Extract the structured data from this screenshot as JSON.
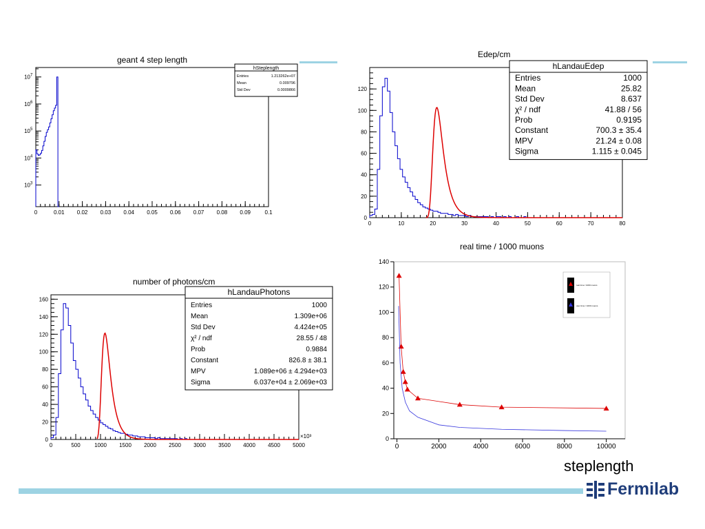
{
  "footer": {
    "label": "steplength",
    "logo_text": "Fermilab"
  },
  "colors": {
    "accent_line": "#9dd3e3",
    "histogram": "#0000cc",
    "fit": "#dd0000",
    "logo": "#1f3d7a"
  },
  "chart_data": [
    {
      "id": "steplength",
      "type": "histogram",
      "title": "geant 4 step length",
      "log_y": true,
      "xlim": [
        0,
        0.1
      ],
      "ylim_exp": [
        2.2,
        7.35
      ],
      "x_ticks": [
        "0",
        "0.01",
        "0.02",
        "0.03",
        "0.04",
        "0.05",
        "0.06",
        "0.07",
        "0.08",
        "0.09",
        "0.1"
      ],
      "y_ticks": [
        {
          "value": 3,
          "base": "10",
          "exp": "3"
        },
        {
          "value": 4,
          "base": "10",
          "exp": "4"
        },
        {
          "value": 5,
          "base": "10",
          "exp": "5"
        },
        {
          "value": 6,
          "base": "10",
          "exp": "6"
        },
        {
          "value": 7,
          "base": "10",
          "exp": "7"
        }
      ],
      "bin_width": 0.0005,
      "log_counts": [
        4.3,
        4.15,
        4.1,
        4.12,
        4.18,
        4.28,
        4.45,
        4.62,
        4.8,
        4.95,
        5.05,
        5.15,
        5.3,
        5.45,
        5.6,
        5.75,
        5.85,
        5.95,
        7.0,
        1.0
      ],
      "stats": {
        "name": "hSteplength",
        "rows": [
          {
            "label": "Entries",
            "value": "1.213262e+07"
          },
          {
            "label": "Mean",
            "value": "0.009796"
          },
          {
            "label": "Std Dev",
            "value": "0.0009866"
          }
        ]
      }
    },
    {
      "id": "edep",
      "type": "histogram",
      "title": "Edep/cm",
      "xlim": [
        0,
        80
      ],
      "ylim": [
        0,
        140
      ],
      "x_ticks": [
        "0",
        "10",
        "20",
        "30",
        "40",
        "50",
        "60",
        "70",
        "80"
      ],
      "y_ticks": [
        "0",
        "20",
        "40",
        "60",
        "80",
        "100",
        "120"
      ],
      "bin_width": 0.8,
      "counts": [
        2,
        3,
        8,
        45,
        95,
        122,
        130,
        118,
        98,
        80,
        67,
        55,
        45,
        38,
        33,
        28,
        24,
        20,
        17,
        14,
        12,
        10,
        9,
        8,
        7,
        6,
        6,
        5,
        4,
        4,
        4,
        3,
        3,
        2,
        3,
        2,
        2,
        2,
        1,
        2,
        1,
        1,
        1,
        1,
        1,
        1,
        1,
        0,
        1,
        0,
        1,
        1,
        0,
        1,
        0,
        1,
        0,
        0,
        1,
        0,
        0,
        1
      ],
      "fit": {
        "mpv": 21.24,
        "sigma": 1.115,
        "constant": 700.3,
        "x_start": 17.8
      },
      "stats": {
        "name": "hLandauEdep",
        "rows": [
          {
            "label": "Entries",
            "value": "1000"
          },
          {
            "label": "Mean",
            "value": "25.82"
          },
          {
            "label": "Std Dev",
            "value": "8.637"
          },
          {
            "label": "χ² / ndf",
            "value": "41.88 / 56"
          },
          {
            "label": "Prob",
            "value": "0.9195"
          },
          {
            "label": "Constant",
            "value": "700.3 ± 35.4"
          },
          {
            "label": "MPV",
            "value": "21.24 ± 0.08"
          },
          {
            "label": "Sigma",
            "value": "1.115 ± 0.045"
          }
        ]
      }
    },
    {
      "id": "photons",
      "type": "histogram",
      "title": "number of photons/cm",
      "xlim": [
        0,
        5000
      ],
      "ylim": [
        0,
        165
      ],
      "x_multiplier": "×10³",
      "x_ticks": [
        "0",
        "500",
        "1000",
        "1500",
        "2000",
        "2500",
        "3000",
        "3500",
        "4000",
        "4500",
        "5000"
      ],
      "y_ticks": [
        "0",
        "20",
        "40",
        "60",
        "80",
        "100",
        "120",
        "140",
        "160"
      ],
      "bin_width": 50,
      "counts": [
        2,
        5,
        25,
        75,
        125,
        155,
        150,
        130,
        110,
        90,
        80,
        70,
        60,
        52,
        45,
        38,
        33,
        29,
        25,
        22,
        19,
        17,
        15,
        13,
        12,
        10,
        9,
        8,
        7,
        7,
        6,
        5,
        5,
        4,
        4,
        3,
        3,
        3,
        2,
        2,
        2,
        2,
        1,
        2,
        1,
        1,
        1,
        1,
        1,
        1,
        1,
        0,
        1,
        0,
        1
      ],
      "fit": {
        "mpv": 1089,
        "sigma": 60.37,
        "constant": 826.8,
        "x_start": 930
      },
      "stats": {
        "name": "hLandauPhotons",
        "rows": [
          {
            "label": "Entries",
            "value": "1000"
          },
          {
            "label": "Mean",
            "value": "1.309e+06"
          },
          {
            "label": "Std Dev",
            "value": "4.424e+05"
          },
          {
            "label": "χ² / ndf",
            "value": "28.55 / 48"
          },
          {
            "label": "Prob",
            "value": "0.9884"
          },
          {
            "label": "Constant",
            "value": "826.8 ± 38.1"
          },
          {
            "label": "MPV",
            "value": "1.089e+06 ± 4.294e+03"
          },
          {
            "label": "Sigma",
            "value": "6.037e+04 ± 2.069e+03"
          }
        ]
      }
    },
    {
      "id": "realtime",
      "type": "line",
      "title": "real time / 1000 muons",
      "xlim": [
        -150,
        10900
      ],
      "ylim": [
        0,
        140
      ],
      "x_ticks": [
        "0",
        "2000",
        "4000",
        "6000",
        "8000",
        "10000"
      ],
      "y_ticks": [
        "0",
        "20",
        "40",
        "60",
        "80",
        "100",
        "120",
        "140"
      ],
      "series": [
        {
          "name": "real time / 1000 muons",
          "color": "#dd0000",
          "x": [
            100,
            200,
            300,
            400,
            500,
            1000,
            3000,
            5000,
            10000
          ],
          "y": [
            129,
            73,
            53,
            45,
            39,
            32,
            27,
            25,
            24
          ]
        },
        {
          "name": "user time / 1000 muons",
          "color": "#3333dd",
          "x": [
            80,
            150,
            250,
            400,
            600,
            1000,
            2000,
            3000,
            5000,
            8000,
            10000
          ],
          "y": [
            105,
            60,
            40,
            29,
            22,
            17,
            11,
            9,
            7.5,
            6.5,
            6
          ]
        }
      ]
    }
  ]
}
